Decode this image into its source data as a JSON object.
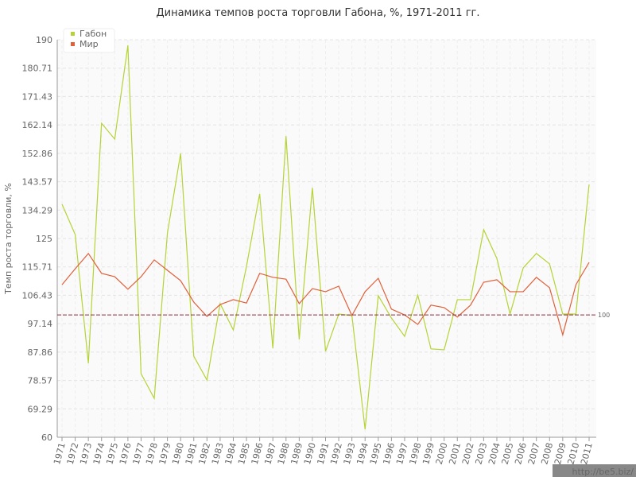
{
  "chart_data": {
    "type": "line",
    "title": "Динамика темпов роста торговли Габона, %, 1971-2011 гг.",
    "y_label": "Темп роста торговли, %",
    "categories": [
      "1971",
      "1972",
      "1973",
      "1974",
      "1975",
      "1976",
      "1977",
      "1978",
      "1979",
      "1980",
      "1981",
      "1982",
      "1983",
      "1984",
      "1985",
      "1986",
      "1987",
      "1988",
      "1989",
      "1990",
      "1991",
      "1992",
      "1993",
      "1994",
      "1995",
      "1996",
      "1997",
      "1998",
      "1999",
      "2000",
      "2001",
      "2002",
      "2003",
      "2004",
      "2005",
      "2006",
      "2007",
      "2008",
      "2009",
      "2010",
      "2011"
    ],
    "series": [
      {
        "name": "Габон",
        "color": "#b5d335",
        "values": [
          136.2,
          126.3,
          84.2,
          162.7,
          157.5,
          188.2,
          80.8,
          72.7,
          126.8,
          152.8,
          86.5,
          78.7,
          103.7,
          95.1,
          115.9,
          139.6,
          89.1,
          158.5,
          92.0,
          141.6,
          88.1,
          100.3,
          99.8,
          62.6,
          106.3,
          99.0,
          93.0,
          106.5,
          88.9,
          88.6,
          105.0,
          105.0,
          127.9,
          118.5,
          100.3,
          115.4,
          120.1,
          116.7,
          100.3,
          100.3,
          142.7
        ]
      },
      {
        "name": "Мир",
        "color": "#e0603a",
        "values": [
          109.9,
          115.1,
          120.1,
          113.6,
          112.5,
          108.4,
          112.5,
          118.0,
          114.6,
          111.2,
          104.2,
          99.5,
          103.4,
          105.0,
          103.9,
          113.6,
          112.3,
          111.7,
          103.7,
          108.6,
          107.6,
          109.4,
          99.8,
          107.6,
          112.0,
          101.9,
          100.0,
          96.9,
          103.2,
          102.4,
          99.3,
          103.2,
          110.7,
          111.5,
          107.6,
          107.6,
          112.3,
          108.9,
          93.5,
          109.9,
          117.2
        ]
      }
    ],
    "ylim": [
      60,
      190
    ],
    "yticks": [
      60,
      69.29,
      78.57,
      87.86,
      97.14,
      106.43,
      115.71,
      125,
      134.29,
      143.57,
      152.86,
      162.14,
      171.43,
      180.71,
      190
    ],
    "grid": true,
    "legend": "top-left",
    "reference_line": 100,
    "reference_color": "#8b2a3a",
    "watermark": "http://be5.biz/"
  }
}
